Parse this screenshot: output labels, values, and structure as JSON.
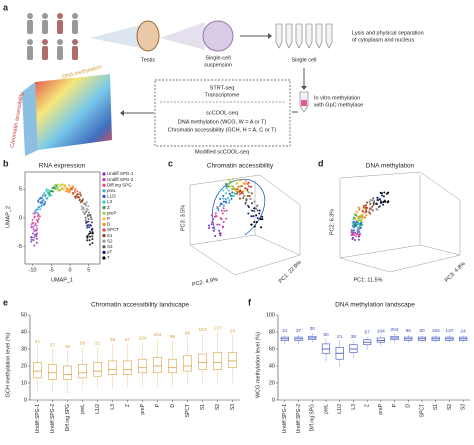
{
  "a": {
    "label": "a",
    "testis": "Testis",
    "suspension": [
      "Single-cell",
      "suspension"
    ],
    "single_cell": "Single cell",
    "lysis": [
      "Lysis and physical separation",
      "of cytoplasm and nucleus"
    ],
    "invitro": [
      "In vitro methylation",
      "with GpC methylase"
    ],
    "strt": "STRT-seq",
    "transcriptome": "Transcriptome",
    "sccool": "scCOOL-seq",
    "dnam": "DNA methylation (WCG, W = A or T)",
    "ca": "Chromatin accessibility (GCH, H = A, C or T)",
    "modified": "Modified scCOOL-seq",
    "heat_dna": "DNA methylation",
    "heat_ca": "Chromatin accessibility"
  },
  "b": {
    "label": "b",
    "title": "RNA expression",
    "xlabel": "UMAP_1",
    "ylabel": "UMAP_2",
    "xlim": [
      -12,
      8
    ],
    "ylim": [
      -8,
      8
    ],
    "xticks": [
      -10,
      -5,
      0,
      5
    ],
    "yticks": [
      -5,
      0,
      5
    ],
    "legend": [
      {
        "name": "Undiff.SPG-1",
        "color": "#7b2fbe"
      },
      {
        "name": "Undiff.SPG-2",
        "color": "#c040c0"
      },
      {
        "name": "Diff.ing SPG",
        "color": "#e83e8c"
      },
      {
        "name": "preL",
        "color": "#3fa7e0"
      },
      {
        "name": "L1/2",
        "color": "#1f5fbf"
      },
      {
        "name": "L3",
        "color": "#36c5c5"
      },
      {
        "name": "Z",
        "color": "#2e9e4f"
      },
      {
        "name": "preP",
        "color": "#9bd13b"
      },
      {
        "name": "P",
        "color": "#f2c12e"
      },
      {
        "name": "D",
        "color": "#f08a24"
      },
      {
        "name": "SPCT",
        "color": "#e0452b"
      },
      {
        "name": "S1",
        "color": "#8b4513"
      },
      {
        "name": "S2",
        "color": "#999999"
      },
      {
        "name": "S3",
        "color": "#555555"
      },
      {
        "name": "eT",
        "color": "#0a1f6e"
      },
      {
        "name": "T",
        "color": "#000000"
      }
    ]
  },
  "c": {
    "label": "c",
    "title": "Chromatin accessibility",
    "pc1": "PC1: 22.9%",
    "pc2": "PC2: 4.9%",
    "pc3": "PC3: 3.5%"
  },
  "d": {
    "label": "d",
    "title": "DNA methylation",
    "pc1": "PC1: 11.5%",
    "pc2": "PC2: 6.3%",
    "pc3": "PC3: 4.8%"
  },
  "e": {
    "label": "e",
    "type": "box",
    "title": "Chromatin accessibility landscape",
    "ylabel": "GCH methylation level (%)",
    "color": "#d9a441",
    "categories": [
      "Undiff.SPG-1",
      "Undiff.SPG-2",
      "Diff.ing SPG",
      "preL",
      "L1/2",
      "L3",
      "Z",
      "preP",
      "P",
      "D",
      "SPCT",
      "S1",
      "S2",
      "S3"
    ],
    "ylim": [
      0,
      50
    ],
    "yticks": [
      0,
      10,
      20,
      30,
      40,
      50
    ],
    "n": [
      41,
      37,
      30,
      50,
      21,
      36,
      67,
      104,
      204,
      96,
      80,
      163,
      137,
      24
    ],
    "low": [
      5,
      5,
      4,
      6,
      7,
      7,
      8,
      8,
      8,
      8,
      9,
      9,
      10,
      10
    ],
    "q1": [
      13,
      12,
      12,
      13,
      14,
      15,
      15,
      16,
      16,
      16,
      17,
      18,
      18,
      19
    ],
    "median": [
      17,
      16,
      15,
      16,
      17,
      18,
      18,
      19,
      20,
      19,
      20,
      22,
      22,
      23
    ],
    "q3": [
      22,
      21,
      20,
      21,
      22,
      23,
      23,
      24,
      25,
      24,
      26,
      27,
      28,
      28
    ],
    "high": [
      32,
      30,
      29,
      31,
      31,
      33,
      33,
      34,
      36,
      35,
      37,
      39,
      40,
      38
    ]
  },
  "f": {
    "label": "f",
    "type": "box",
    "title": "DNA methylation landscape",
    "ylabel": "WCG methylation level (%)",
    "color": "#3a4fbf",
    "categories": [
      "Undiff.SPG-1",
      "Undiff.SPG-2",
      "Diff.ing SPG",
      "preL",
      "L1/2",
      "L3",
      "Z",
      "preP",
      "P",
      "D",
      "SPCT",
      "S1",
      "S2",
      "S3"
    ],
    "ylim": [
      0,
      100
    ],
    "yticks": [
      0,
      20,
      40,
      60,
      80,
      100
    ],
    "n": [
      41,
      37,
      30,
      50,
      21,
      36,
      67,
      104,
      204,
      96,
      80,
      163,
      137,
      24
    ],
    "low": [
      66,
      66,
      68,
      45,
      40,
      50,
      60,
      64,
      68,
      68,
      68,
      68,
      68,
      68
    ],
    "q1": [
      70,
      70,
      71,
      55,
      48,
      56,
      65,
      68,
      71,
      70,
      70,
      70,
      70,
      70
    ],
    "median": [
      72,
      72,
      73,
      60,
      55,
      60,
      68,
      70,
      73,
      72,
      72,
      72,
      72,
      72
    ],
    "q3": [
      74,
      74,
      75,
      66,
      62,
      65,
      71,
      73,
      75,
      74,
      74,
      74,
      74,
      74
    ],
    "high": [
      77,
      77,
      79,
      72,
      70,
      70,
      75,
      76,
      78,
      77,
      77,
      77,
      77,
      76
    ]
  }
}
